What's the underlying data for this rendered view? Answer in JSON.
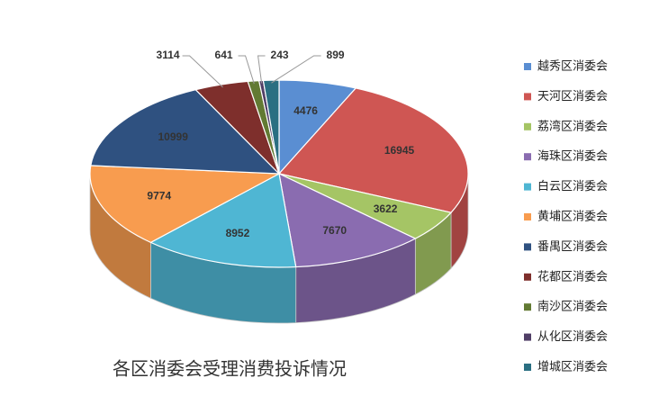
{
  "chart_data": {
    "type": "pie3d",
    "title": "各区消委会受理消费投诉情况",
    "categories": [
      "越秀区消委会",
      "天河区消委会",
      "荔湾区消委会",
      "海珠区消委会",
      "白云区消委会",
      "黄埔区消委会",
      "番禺区消委会",
      "花都区消委会",
      "南沙区消委会",
      "从化区消委会",
      "增城区消委会"
    ],
    "values": [
      4476,
      16945,
      3622,
      7670,
      8952,
      9774,
      10999,
      3114,
      641,
      243,
      899
    ],
    "colors": [
      "#5a8ed2",
      "#cf5653",
      "#a5c565",
      "#8a6cb0",
      "#4fb6d3",
      "#f89c4f",
      "#2f5180",
      "#7e2f2c",
      "#627a33",
      "#503e66",
      "#2a6f82"
    ],
    "legend": "right"
  }
}
